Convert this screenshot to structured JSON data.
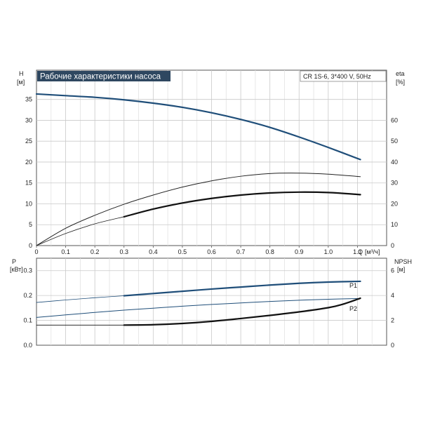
{
  "chart_data": [
    {
      "type": "line",
      "title": "Рабочие характеристики насоса",
      "info_box": "CR 1S-6, 3*400 V, 50Hz",
      "xlabel": "Q [м³/ч]",
      "x_unit_label": "Q",
      "x_unit_bracket": "[м³/ч]",
      "ylabel_left": "H",
      "ylabel_left_unit": "[м]",
      "ylabel_right": "eta",
      "ylabel_right_unit": "[%]",
      "xlim": [
        0,
        1.2
      ],
      "ylim_left": [
        0,
        42
      ],
      "ylim_right": [
        0,
        84
      ],
      "x_ticks": [
        "0",
        "0.1",
        "0.2",
        "0.3",
        "0.4",
        "0.5",
        "0.6",
        "0.7",
        "0.8",
        "0.9",
        "1.0",
        "1.1"
      ],
      "x_tick_values": [
        0,
        0.1,
        0.2,
        0.3,
        0.4,
        0.5,
        0.6,
        0.7,
        0.8,
        0.9,
        1.0,
        1.1
      ],
      "y_ticks_left": [
        "0",
        "5",
        "10",
        "15",
        "20",
        "25",
        "30",
        "35"
      ],
      "y_tick_values_left": [
        0,
        5,
        10,
        15,
        20,
        25,
        30,
        35
      ],
      "y_ticks_right": [
        "0",
        "10",
        "20",
        "30",
        "40",
        "50",
        "60"
      ],
      "y_tick_values_right": [
        0,
        10,
        20,
        30,
        40,
        50,
        60
      ],
      "grid": true,
      "series": [
        {
          "axis": "left",
          "color": "#1f4e79",
          "style": "thick",
          "x": [
            0,
            0.1,
            0.2,
            0.3,
            0.4,
            0.5,
            0.6,
            0.7,
            0.8,
            0.9,
            1.0,
            1.11
          ],
          "y": [
            36.3,
            35.9,
            35.5,
            34.9,
            34.1,
            33.1,
            31.8,
            30.2,
            28.3,
            26.0,
            23.5,
            20.6
          ]
        },
        {
          "axis": "right",
          "color": "#222222",
          "style": "thin",
          "x": [
            0,
            0.1,
            0.2,
            0.3,
            0.4,
            0.5,
            0.6,
            0.7,
            0.8,
            0.9,
            1.0,
            1.11
          ],
          "y": [
            0,
            8.3,
            14.5,
            19.8,
            24.2,
            28.0,
            31.0,
            33.2,
            34.5,
            34.7,
            34.2,
            33.0
          ]
        },
        {
          "axis": "right",
          "color": "#222222",
          "style": "thin-partial",
          "x": [
            0,
            0.1,
            0.2,
            0.3
          ],
          "y": [
            0,
            5.8,
            10.4,
            13.8
          ]
        },
        {
          "axis": "right",
          "color": "#111111",
          "style": "thick",
          "x": [
            0.3,
            0.4,
            0.5,
            0.6,
            0.7,
            0.8,
            0.9,
            1.0,
            1.11
          ],
          "y": [
            13.8,
            17.5,
            20.4,
            22.6,
            24.2,
            25.2,
            25.6,
            25.4,
            24.4
          ]
        }
      ]
    },
    {
      "type": "line",
      "xlabel": "",
      "ylabel_left": "P",
      "ylabel_left_unit": "[кВт]",
      "ylabel_right": "NPSH",
      "ylabel_right_unit": "[м]",
      "xlim": [
        0,
        1.2
      ],
      "ylim_left": [
        0,
        0.35
      ],
      "ylim_right": [
        0,
        7
      ],
      "y_ticks_left": [
        "0.0",
        "0.1",
        "0.2",
        "0.3"
      ],
      "y_tick_values_left": [
        0,
        0.1,
        0.2,
        0.3
      ],
      "y_ticks_right": [
        "0",
        "2",
        "4",
        "6"
      ],
      "y_tick_values_right": [
        0,
        2,
        4,
        6
      ],
      "grid": true,
      "series": [
        {
          "name": "P1",
          "axis": "left",
          "color": "#1f4e79",
          "style": "thin-partial",
          "x": [
            0,
            0.1,
            0.2,
            0.3
          ],
          "y": [
            0.172,
            0.182,
            0.191,
            0.199
          ]
        },
        {
          "name": "P1",
          "axis": "left",
          "color": "#1f4e79",
          "style": "thick",
          "x": [
            0.3,
            0.4,
            0.5,
            0.6,
            0.7,
            0.8,
            0.9,
            1.0,
            1.11
          ],
          "y": [
            0.199,
            0.208,
            0.217,
            0.226,
            0.234,
            0.242,
            0.249,
            0.254,
            0.257
          ]
        },
        {
          "name": "P2",
          "axis": "left",
          "color": "#1f4e79",
          "style": "thin",
          "x": [
            0,
            0.1,
            0.2,
            0.3,
            0.4,
            0.5,
            0.6,
            0.7,
            0.8,
            0.9,
            1.0,
            1.11
          ],
          "y": [
            0.112,
            0.122,
            0.132,
            0.141,
            0.149,
            0.157,
            0.164,
            0.17,
            0.176,
            0.181,
            0.185,
            0.188
          ]
        },
        {
          "axis": "right",
          "color": "#111111",
          "style": "thin-partial",
          "x": [
            0,
            0.3
          ],
          "y": [
            1.62,
            1.62
          ]
        },
        {
          "axis": "right",
          "color": "#111111",
          "style": "thick",
          "x": [
            0.3,
            0.4,
            0.5,
            0.6,
            0.7,
            0.8,
            0.9,
            1.0,
            1.05,
            1.11
          ],
          "y": [
            1.62,
            1.65,
            1.75,
            1.92,
            2.15,
            2.4,
            2.68,
            3.02,
            3.3,
            3.78
          ]
        }
      ],
      "series_labels": [
        "P1",
        "P2"
      ]
    }
  ]
}
